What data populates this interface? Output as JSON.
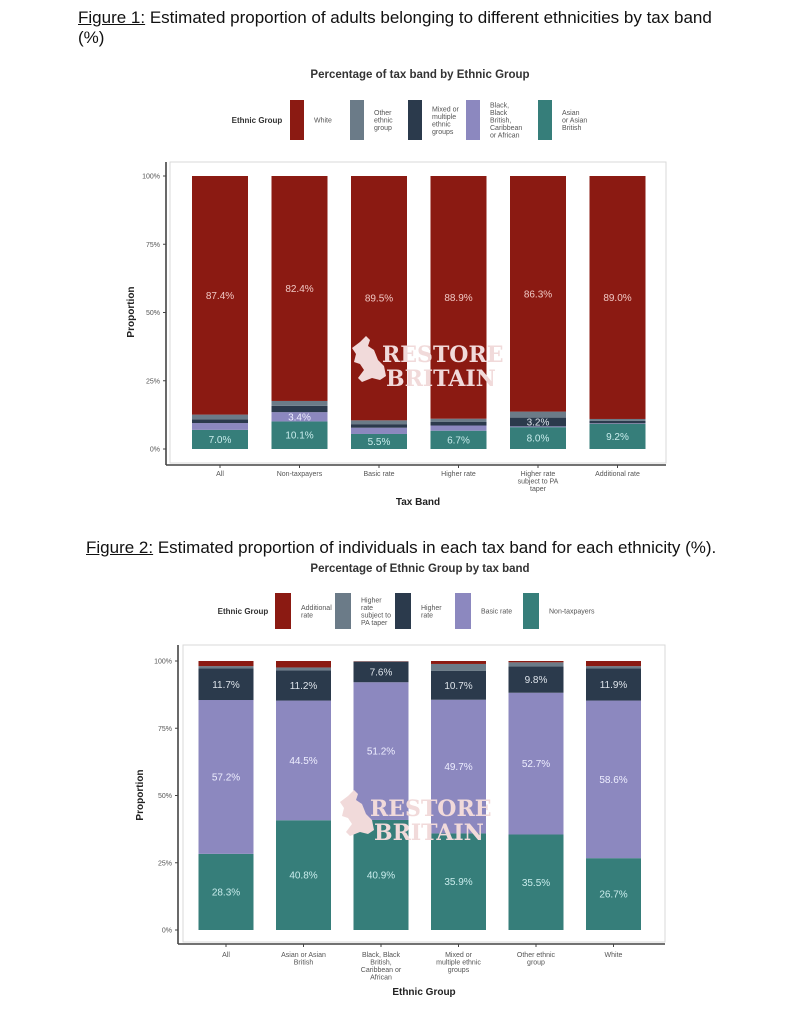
{
  "figure1": {
    "heading_label": "Figure 1:",
    "heading_text": " Estimated proportion of adults belonging to different ethnicities by tax band (%)"
  },
  "figure2": {
    "heading_label": "Figure 2:",
    "heading_text": " Estimated proportion of individuals in each tax band for each ethnicity (%)."
  },
  "watermark": {
    "line1": "RESTORE",
    "line2": "BRITAIN"
  },
  "chart_data": [
    {
      "type": "bar",
      "stacked": true,
      "title": "Percentage of tax band by Ethnic Group",
      "xlabel": "Tax Band",
      "ylabel": "Proportion",
      "ylim": [
        0,
        100
      ],
      "yticks": [
        "0%",
        "25%",
        "50%",
        "75%",
        "100%"
      ],
      "legend_title": "Ethnic Group",
      "legend_position": "top",
      "legend": [
        {
          "name": "White",
          "lines": [
            "White"
          ],
          "color": "#8b1a12"
        },
        {
          "name": "Other ethnic group",
          "lines": [
            "Other",
            "ethnic",
            "group"
          ],
          "color": "#6b7b88"
        },
        {
          "name": "Mixed or multiple ethnic groups",
          "lines": [
            "Mixed or",
            "multiple",
            "ethnic",
            "groups"
          ],
          "color": "#2b3a4c"
        },
        {
          "name": "Black, Black British, Caribbean or African",
          "lines": [
            "Black,",
            "Black",
            "British,",
            "Caribbean",
            "or African"
          ],
          "color": "#8c88bf"
        },
        {
          "name": "Asian or Asian British",
          "lines": [
            "Asian",
            "or Asian",
            "British"
          ],
          "color": "#367e7a"
        }
      ],
      "categories": [
        "All",
        "Non-taxpayers",
        "Basic rate",
        "Higher rate",
        "Higher rate subject to PA taper",
        "Additional rate"
      ],
      "category_lines": [
        [
          "All"
        ],
        [
          "Non-taxpayers"
        ],
        [
          "Basic rate"
        ],
        [
          "Higher rate"
        ],
        [
          "Higher rate",
          "subject to PA",
          "taper"
        ],
        [
          "Additional rate"
        ]
      ],
      "stack_order_bottom_up": [
        "Asian or Asian British",
        "Black, Black British, Caribbean or African",
        "Mixed or multiple ethnic groups",
        "Other ethnic group",
        "White"
      ],
      "series": [
        {
          "name": "Asian or Asian British",
          "values": [
            7.0,
            10.1,
            5.5,
            6.7,
            8.0,
            9.2
          ],
          "labels": [
            "7.0%",
            "10.1%",
            "5.5%",
            "6.7%",
            "8.0%",
            "9.2%"
          ],
          "label_color": "#c9ecec"
        },
        {
          "name": "Black, Black British, Caribbean or African",
          "values": [
            2.5,
            3.4,
            2.3,
            1.9,
            0.3,
            0.2
          ],
          "labels": [
            "",
            "3.4%",
            "",
            "",
            "",
            ""
          ],
          "label_color": "#eeeeff"
        },
        {
          "name": "Mixed or multiple ethnic groups",
          "values": [
            1.4,
            2.3,
            1.3,
            1.3,
            3.2,
            0.9
          ],
          "labels": [
            "",
            "",
            "",
            "",
            "3.2%",
            ""
          ],
          "label_color": "#dde3ea"
        },
        {
          "name": "Other ethnic group",
          "values": [
            1.7,
            1.8,
            1.4,
            1.2,
            2.2,
            0.7
          ],
          "labels": [
            "",
            "",
            "",
            "",
            "",
            ""
          ],
          "label_color": "#eeeeee"
        },
        {
          "name": "White",
          "values": [
            87.4,
            82.4,
            89.5,
            88.9,
            86.3,
            89.0
          ],
          "labels": [
            "87.4%",
            "82.4%",
            "89.5%",
            "88.9%",
            "86.3%",
            "89.0%"
          ],
          "label_color": "#f0c8c4"
        }
      ]
    },
    {
      "type": "bar",
      "stacked": true,
      "title": "Percentage of Ethnic Group by tax band",
      "xlabel": "Ethnic Group",
      "ylabel": "Proportion",
      "ylim": [
        0,
        100
      ],
      "yticks": [
        "0%",
        "25%",
        "50%",
        "75%",
        "100%"
      ],
      "legend_title": "Ethnic Group",
      "legend_position": "top",
      "legend": [
        {
          "name": "Additional rate",
          "lines": [
            "Additional",
            "rate"
          ],
          "color": "#8b1a12"
        },
        {
          "name": "Higher rate subject to PA taper",
          "lines": [
            "Higher",
            "rate",
            "subject to",
            "PA taper"
          ],
          "color": "#6b7b88"
        },
        {
          "name": "Higher rate",
          "lines": [
            "Higher",
            "rate"
          ],
          "color": "#2b3a4c"
        },
        {
          "name": "Basic rate",
          "lines": [
            "Basic rate"
          ],
          "color": "#8c88bf"
        },
        {
          "name": "Non-taxpayers",
          "lines": [
            "Non-taxpayers"
          ],
          "color": "#367e7a"
        }
      ],
      "categories": [
        "All",
        "Asian or Asian British",
        "Black, Black British, Caribbean or African",
        "Mixed or multiple ethnic groups",
        "Other ethnic group",
        "White"
      ],
      "category_lines": [
        [
          "All"
        ],
        [
          "Asian or Asian",
          "British"
        ],
        [
          "Black, Black",
          "British,",
          "Caribbean or",
          "African"
        ],
        [
          "Mixed or",
          "multiple ethnic",
          "groups"
        ],
        [
          "Other ethnic",
          "group"
        ],
        [
          "White"
        ]
      ],
      "stack_order_bottom_up": [
        "Non-taxpayers",
        "Basic rate",
        "Higher rate",
        "Higher rate subject to PA taper",
        "Additional rate"
      ],
      "series": [
        {
          "name": "Non-taxpayers",
          "values": [
            28.3,
            40.8,
            40.9,
            35.9,
            35.5,
            26.7
          ],
          "labels": [
            "28.3%",
            "40.8%",
            "40.9%",
            "35.9%",
            "35.5%",
            "26.7%"
          ],
          "label_color": "#c9ecec"
        },
        {
          "name": "Basic rate",
          "values": [
            57.2,
            44.5,
            51.2,
            49.7,
            52.7,
            58.6
          ],
          "labels": [
            "57.2%",
            "44.5%",
            "51.2%",
            "49.7%",
            "52.7%",
            "58.6%"
          ],
          "label_color": "#eeeeff"
        },
        {
          "name": "Higher rate",
          "values": [
            11.7,
            11.2,
            7.6,
            10.7,
            9.8,
            11.9
          ],
          "labels": [
            "11.7%",
            "11.2%",
            "7.6%",
            "10.7%",
            "9.8%",
            "11.9%"
          ],
          "label_color": "#dde3ea"
        },
        {
          "name": "Higher rate subject to PA taper",
          "values": [
            0.9,
            1.1,
            0.2,
            2.6,
            1.5,
            0.9
          ],
          "labels": [
            "",
            "",
            "",
            "",
            "",
            ""
          ],
          "label_color": "#eeeeee"
        },
        {
          "name": "Additional rate",
          "values": [
            1.9,
            2.4,
            0.1,
            1.1,
            0.5,
            1.9
          ],
          "labels": [
            "",
            "",
            "",
            "",
            "",
            ""
          ],
          "label_color": "#f0c8c4"
        }
      ]
    }
  ]
}
